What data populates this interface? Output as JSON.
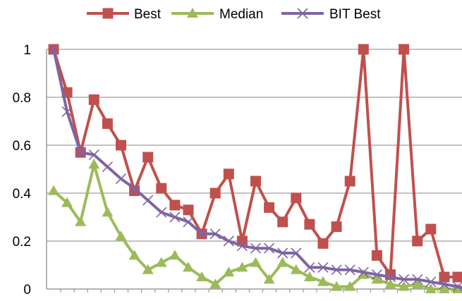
{
  "chart_data": {
    "type": "line",
    "title": "",
    "xlabel": "",
    "ylabel": "",
    "ylim": [
      0,
      1
    ],
    "yticks": [
      "0",
      "0.2",
      "0.4",
      "0.6",
      "0.8",
      "1"
    ],
    "grid": "horizontal",
    "legend_position": "top",
    "x_count": 34,
    "series": [
      {
        "name": "Best",
        "color": "#C0504D",
        "marker": "square",
        "values": [
          1.0,
          0.82,
          0.57,
          0.79,
          0.69,
          0.6,
          0.41,
          0.55,
          0.42,
          0.35,
          0.33,
          0.23,
          0.4,
          0.48,
          0.2,
          0.45,
          0.34,
          0.28,
          0.38,
          0.27,
          0.19,
          0.26,
          0.45,
          1.0,
          0.14,
          0.06,
          1.0,
          0.2,
          0.25,
          0.05,
          0.05
        ]
      },
      {
        "name": "Median",
        "color": "#9BBB59",
        "marker": "triangle",
        "values": [
          0.41,
          0.36,
          0.28,
          0.52,
          0.32,
          0.22,
          0.14,
          0.08,
          0.11,
          0.14,
          0.09,
          0.05,
          0.02,
          0.07,
          0.09,
          0.11,
          0.04,
          0.11,
          0.08,
          0.05,
          0.03,
          0.01,
          0.01,
          0.06,
          0.04,
          0.02,
          0.01,
          0.02,
          0.0,
          0.0,
          0.0
        ]
      },
      {
        "name": "BIT Best",
        "color": "#8064A2",
        "marker": "x",
        "values": [
          1.0,
          0.74,
          0.57,
          0.56,
          0.51,
          0.46,
          0.42,
          0.37,
          0.32,
          0.3,
          0.28,
          0.23,
          0.23,
          0.2,
          0.18,
          0.17,
          0.17,
          0.15,
          0.15,
          0.09,
          0.09,
          0.08,
          0.08,
          0.07,
          0.06,
          0.05,
          0.04,
          0.04,
          0.03,
          0.02,
          0.01,
          0.0
        ]
      }
    ]
  }
}
